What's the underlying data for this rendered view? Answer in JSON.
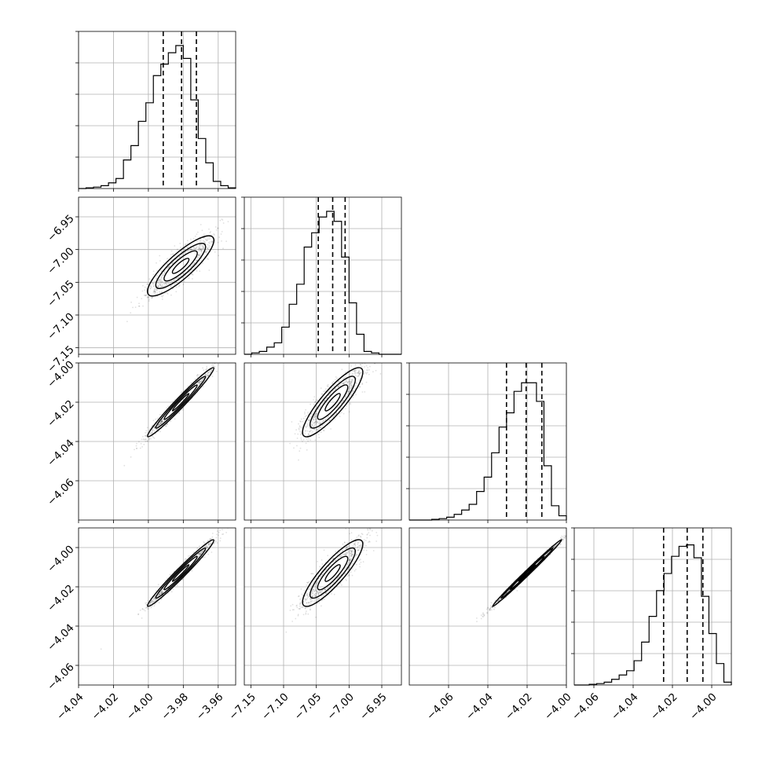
{
  "chart_data": {
    "type": "corner",
    "grid": true,
    "parameters": [
      {
        "range": [
          -4.04,
          -3.95
        ],
        "mean": -3.9815,
        "sd": 0.0095,
        "quantiles": [
          -3.9915,
          -3.981,
          -3.9725
        ],
        "ticks": [
          -4.04,
          -4.02,
          -4.0,
          -3.98,
          -3.96
        ],
        "tick_labels": [
          "−4.04",
          "−4.02",
          "−4.00",
          "−3.98",
          "−3.96"
        ],
        "hist": [
          0,
          0.005,
          0.01,
          0.02,
          0.04,
          0.07,
          0.2,
          0.3,
          0.47,
          0.6,
          0.79,
          0.87,
          0.95,
          1.0,
          0.91,
          0.62,
          0.35,
          0.18,
          0.05,
          0.02,
          0.005
        ]
      },
      {
        "range": [
          -7.16,
          -6.92
        ],
        "mean": -7.025,
        "sd": 0.023,
        "quantiles": [
          -7.047,
          -7.025,
          -7.006
        ],
        "ticks": [
          -7.15,
          -7.1,
          -7.05,
          -7.0,
          -6.95
        ],
        "tick_labels": [
          "−7.15",
          "−7.10",
          "−7.05",
          "−7.00",
          "−6.95"
        ],
        "hist": [
          0,
          0.01,
          0.02,
          0.05,
          0.08,
          0.19,
          0.35,
          0.49,
          0.75,
          0.85,
          0.96,
          1.0,
          0.93,
          0.68,
          0.36,
          0.14,
          0.02,
          0.01,
          0,
          0,
          0
        ]
      },
      {
        "range": [
          -4.08,
          -4.0
        ],
        "mean": -4.02,
        "sd": 0.0088,
        "quantiles": [
          -4.0305,
          -4.0205,
          -4.0125
        ],
        "ticks": [
          -4.06,
          -4.04,
          -4.02,
          -4.0
        ],
        "tick_labels": [
          "−4.06",
          "−4.04",
          "−4.02",
          "−4.00"
        ],
        "hist": [
          0,
          0,
          0,
          0.005,
          0.01,
          0.02,
          0.04,
          0.07,
          0.11,
          0.2,
          0.3,
          0.47,
          0.65,
          0.75,
          0.9,
          0.96,
          0.96,
          0.83,
          0.38,
          0.1,
          0.03
        ]
      },
      {
        "range": [
          -4.07,
          -3.99
        ],
        "mean": -4.013,
        "sd": 0.0085,
        "quantiles": [
          -4.0245,
          -4.0125,
          -4.0045
        ],
        "ticks": [
          -4.06,
          -4.04,
          -4.02,
          -4.0
        ],
        "tick_labels": [
          "−4.06",
          "−4.04",
          "−4.02",
          "−4.00"
        ],
        "hist": [
          0,
          0,
          0.005,
          0.01,
          0.02,
          0.04,
          0.07,
          0.1,
          0.17,
          0.3,
          0.48,
          0.66,
          0.78,
          0.9,
          0.97,
          0.98,
          0.89,
          0.62,
          0.36,
          0.15,
          0.02
        ]
      }
    ],
    "pairs": [
      {
        "x": 0,
        "y": 1,
        "rho": 0.85
      },
      {
        "x": 0,
        "y": 2,
        "rho": 0.98
      },
      {
        "x": 1,
        "y": 2,
        "rho": 0.87
      },
      {
        "x": 0,
        "y": 3,
        "rho": 0.98
      },
      {
        "x": 1,
        "y": 3,
        "rho": 0.87
      },
      {
        "x": 2,
        "y": 3,
        "rho": 0.995
      }
    ],
    "contour_levels_sigma": [
      0.5,
      1.0,
      1.5,
      2.0
    ],
    "colors": {
      "line": "#000000",
      "grid": "#b0b0b0",
      "contour_fills": [
        "#000000",
        "#4a4a4a",
        "#8c8c8c",
        "#dedede"
      ]
    }
  }
}
